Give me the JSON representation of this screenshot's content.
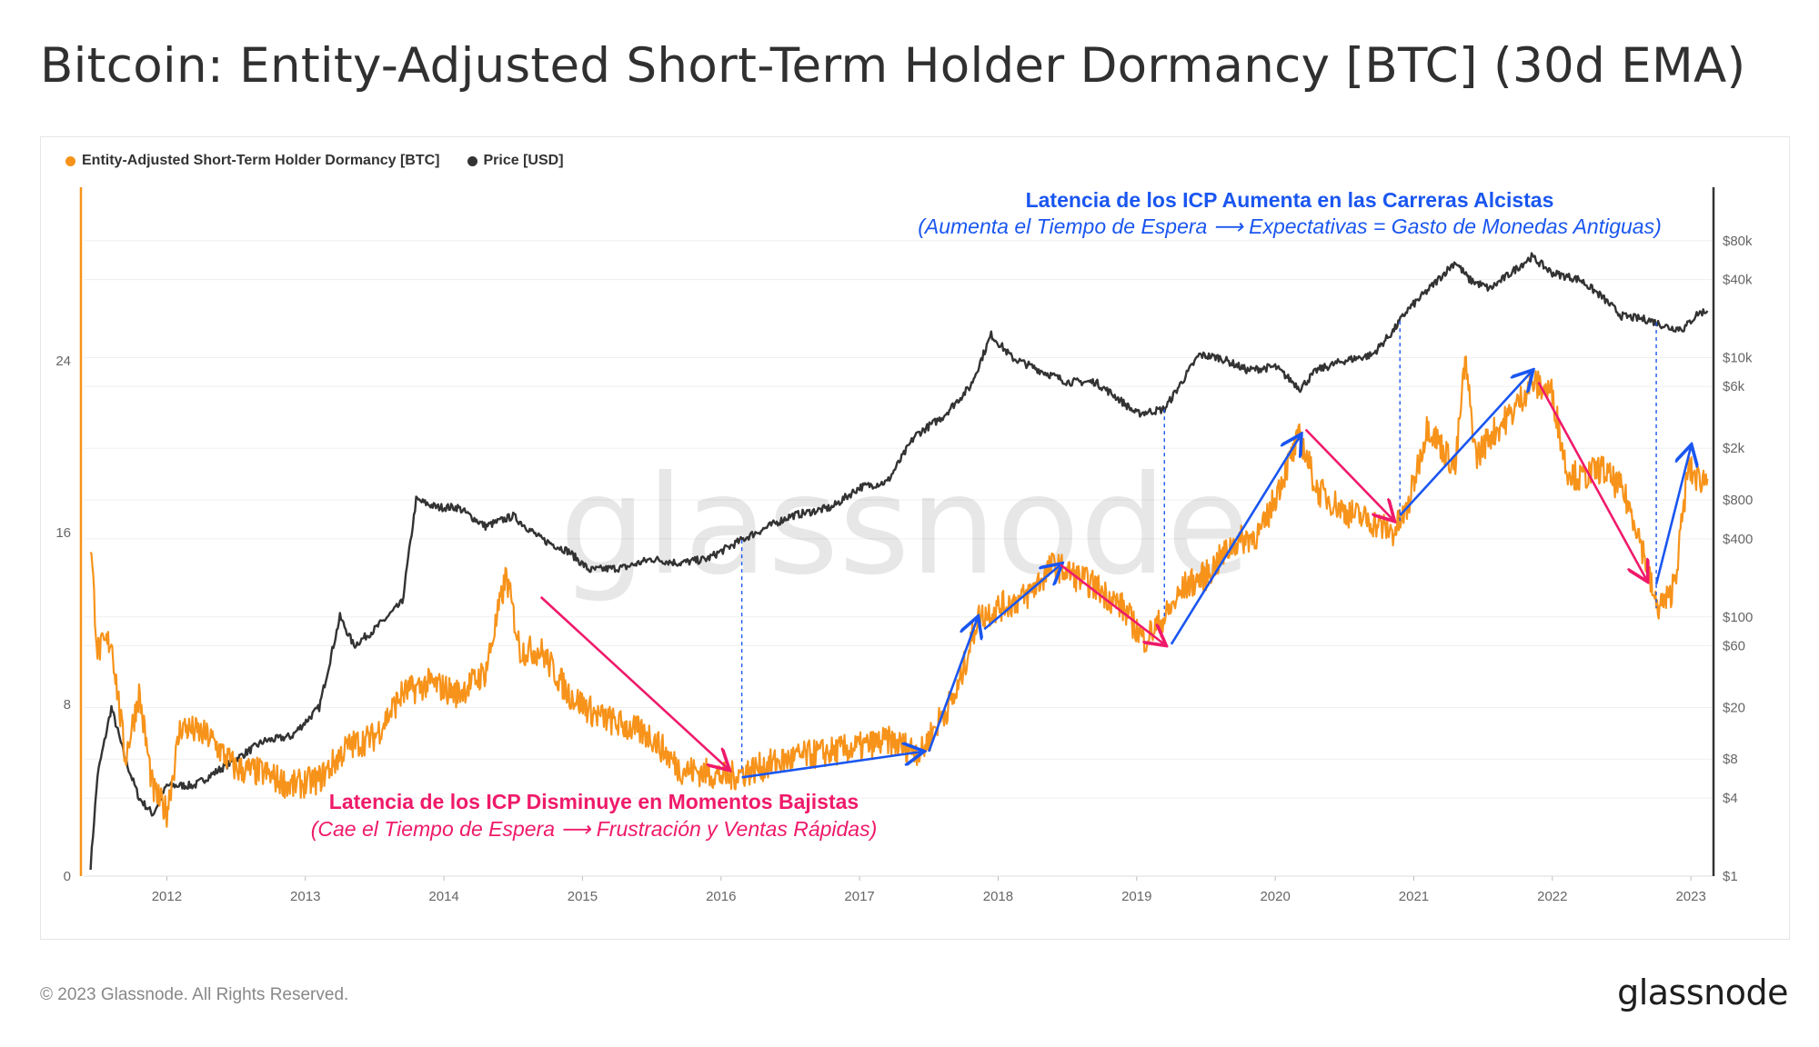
{
  "header": {
    "title": "Bitcoin: Entity-Adjusted Short-Term Holder Dormancy [BTC] (30d EMA)"
  },
  "legend": [
    {
      "label": "Entity-Adjusted Short-Term Holder Dormancy [BTC]",
      "color": "#f7931a"
    },
    {
      "label": "Price [USD]",
      "color": "#333333"
    }
  ],
  "watermark": "glassnode",
  "footer": {
    "copyright": "© 2023 Glassnode. All Rights Reserved.",
    "logo": "glassnode"
  },
  "annotations": {
    "bull": {
      "title": "Latencia de los ICP Aumenta en las Carreras Alcistas",
      "subtitle": "(Aumenta el Tiempo de Espera ⟶ Expectativas = Gasto de Monedas Antiguas)",
      "color": "#1a56f0"
    },
    "bear": {
      "title": "Latencia de los ICP Disminuye en Momentos Bajistas",
      "subtitle": "(Cae el Tiempo de Espera ⟶ Frustración y Ventas Rápidas)",
      "color": "#ef1a6a"
    }
  },
  "chart_data": {
    "type": "line",
    "title": "Bitcoin: Entity-Adjusted Short-Term Holder Dormancy [BTC] (30d EMA)",
    "x_ticks": [
      "2012",
      "2013",
      "2014",
      "2015",
      "2016",
      "2017",
      "2018",
      "2019",
      "2020",
      "2021",
      "2022",
      "2023"
    ],
    "xlim": [
      2011.4,
      2023.15
    ],
    "y_left": {
      "ticks": [
        "0",
        "8",
        "16",
        "24"
      ],
      "lim": [
        0,
        32
      ],
      "color": "#f7931a"
    },
    "y_right": {
      "scale": "log",
      "ticks": [
        "$1",
        "$4",
        "$8",
        "$20",
        "$60",
        "$100",
        "$400",
        "$800",
        "$2k",
        "$6k",
        "$10k",
        "$40k",
        "$80k"
      ],
      "tick_values": [
        1,
        4,
        8,
        20,
        60,
        100,
        400,
        800,
        2000,
        6000,
        10000,
        40000,
        80000
      ],
      "lim": [
        1,
        200000
      ]
    },
    "series": [
      {
        "name": "Entity-Adjusted Short-Term Holder Dormancy [BTC]",
        "axis": "left",
        "color": "#f7931a",
        "x": [
          2011.45,
          2011.5,
          2011.6,
          2011.7,
          2011.8,
          2011.9,
          2012.0,
          2012.1,
          2012.3,
          2012.5,
          2012.7,
          2012.9,
          2013.1,
          2013.3,
          2013.5,
          2013.7,
          2013.9,
          2014.1,
          2014.3,
          2014.45,
          2014.55,
          2014.7,
          2014.9,
          2015.1,
          2015.3,
          2015.5,
          2015.7,
          2015.9,
          2016.05,
          2016.2,
          2016.4,
          2016.6,
          2016.8,
          2017.0,
          2017.2,
          2017.45,
          2017.55,
          2017.7,
          2017.85,
          2018.0,
          2018.2,
          2018.4,
          2018.55,
          2018.7,
          2018.9,
          2019.05,
          2019.2,
          2019.35,
          2019.5,
          2019.7,
          2019.9,
          2020.05,
          2020.18,
          2020.3,
          2020.5,
          2020.7,
          2020.85,
          2020.95,
          2021.1,
          2021.2,
          2021.3,
          2021.37,
          2021.45,
          2021.55,
          2021.7,
          2021.85,
          2022.0,
          2022.1,
          2022.2,
          2022.35,
          2022.5,
          2022.6,
          2022.68,
          2022.75,
          2022.85,
          2022.9,
          2022.98,
          2023.05,
          2023.12
        ],
        "values": [
          15.5,
          10.5,
          11.0,
          5.5,
          8.5,
          4.0,
          3.0,
          7.0,
          6.5,
          5.0,
          4.8,
          4.2,
          4.5,
          6.0,
          6.5,
          8.5,
          9.0,
          8.5,
          9.5,
          14.0,
          10.5,
          10.5,
          8.5,
          7.5,
          7.0,
          6.5,
          5.0,
          4.8,
          4.6,
          4.9,
          5.3,
          5.6,
          5.8,
          6.0,
          6.3,
          5.8,
          7.0,
          8.5,
          12.0,
          12.5,
          13.0,
          14.5,
          14.0,
          13.5,
          12.5,
          11.0,
          12.0,
          13.5,
          14.0,
          15.5,
          16.0,
          18.5,
          20.5,
          18.0,
          17.0,
          16.5,
          16.0,
          17.0,
          21.0,
          20.0,
          19.0,
          24.0,
          19.5,
          20.5,
          21.5,
          23.0,
          22.5,
          19.0,
          18.5,
          19.0,
          18.0,
          16.5,
          14.5,
          12.5,
          13.0,
          14.5,
          19.0,
          18.5,
          18.5
        ]
      },
      {
        "name": "Price [USD]",
        "axis": "right",
        "color": "#333333",
        "x": [
          2011.45,
          2011.5,
          2011.6,
          2011.7,
          2011.8,
          2011.9,
          2012.0,
          2012.2,
          2012.5,
          2012.7,
          2012.9,
          2013.1,
          2013.25,
          2013.35,
          2013.5,
          2013.7,
          2013.8,
          2013.95,
          2014.1,
          2014.3,
          2014.5,
          2014.7,
          2014.9,
          2015.05,
          2015.3,
          2015.5,
          2015.7,
          2015.9,
          2016.2,
          2016.5,
          2016.8,
          2017.0,
          2017.2,
          2017.4,
          2017.6,
          2017.8,
          2017.95,
          2018.1,
          2018.3,
          2018.5,
          2018.7,
          2018.85,
          2019.0,
          2019.2,
          2019.45,
          2019.6,
          2019.8,
          2020.0,
          2020.18,
          2020.3,
          2020.5,
          2020.7,
          2020.85,
          2020.95,
          2021.1,
          2021.3,
          2021.4,
          2021.55,
          2021.7,
          2021.85,
          2022.0,
          2022.2,
          2022.35,
          2022.5,
          2022.7,
          2022.85,
          2022.95,
          2023.05,
          2023.12
        ],
        "values": [
          1.2,
          6,
          20,
          8,
          4,
          3,
          5,
          5,
          8,
          11,
          12,
          20,
          100,
          60,
          80,
          130,
          800,
          700,
          700,
          500,
          600,
          400,
          320,
          230,
          240,
          280,
          260,
          280,
          420,
          600,
          700,
          1000,
          1100,
          2500,
          3500,
          6000,
          15000,
          10000,
          8000,
          6500,
          6500,
          5000,
          3700,
          4000,
          10500,
          10000,
          8000,
          8500,
          5800,
          8000,
          9500,
          10500,
          16000,
          23000,
          33000,
          55000,
          40000,
          34000,
          45000,
          60000,
          45000,
          40000,
          30000,
          21000,
          19500,
          17000,
          16800,
          22000,
          23000
        ]
      }
    ],
    "annotation_arrows": [
      {
        "color": "bear",
        "from": [
          2014.7,
          13.0
        ],
        "to": [
          2016.05,
          5.0
        ]
      },
      {
        "color": "bull",
        "from": [
          2016.15,
          4.6
        ],
        "to": [
          2017.45,
          5.8
        ]
      },
      {
        "color": "bull",
        "from": [
          2017.5,
          5.8
        ],
        "to": [
          2017.85,
          12.0
        ]
      },
      {
        "color": "bull",
        "from": [
          2017.9,
          11.5
        ],
        "to": [
          2018.45,
          14.5
        ]
      },
      {
        "color": "bear",
        "from": [
          2018.45,
          14.5
        ],
        "to": [
          2019.2,
          10.8
        ]
      },
      {
        "color": "bull",
        "from": [
          2019.25,
          10.8
        ],
        "to": [
          2020.18,
          20.5
        ]
      },
      {
        "color": "bear",
        "from": [
          2020.22,
          20.8
        ],
        "to": [
          2020.85,
          16.6
        ]
      },
      {
        "color": "bull",
        "from": [
          2020.9,
          16.8
        ],
        "to": [
          2021.85,
          23.5
        ]
      },
      {
        "color": "bear",
        "from": [
          2021.9,
          23.0
        ],
        "to": [
          2022.68,
          13.8
        ]
      },
      {
        "color": "bull",
        "from": [
          2022.75,
          13.6
        ],
        "to": [
          2023.0,
          20.0
        ]
      }
    ],
    "dashed_markers_x": [
      2016.15,
      2019.2,
      2020.9,
      2022.75
    ]
  }
}
